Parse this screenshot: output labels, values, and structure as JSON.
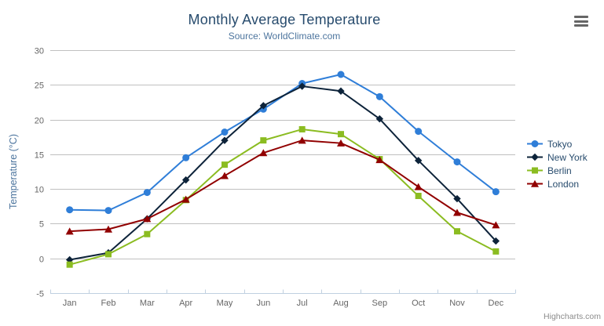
{
  "header": {
    "title": "Monthly Average Temperature",
    "subtitle": "Source: WorldClimate.com"
  },
  "export_menu": {
    "icon": "hamburger-menu-icon"
  },
  "credits": {
    "label": "Highcharts.com"
  },
  "colors": {
    "title": "#274b6d",
    "subtitle": "#4d759e",
    "axis_label": "#666666",
    "gridline": "#c0c0c0",
    "x_axis_line": "#c0d0e0",
    "legend_text": "#274b6d",
    "menu_icon": "#666666",
    "credit_text": "#8c8c8c"
  },
  "chart_data": {
    "type": "line",
    "title": "Monthly Average Temperature",
    "subtitle": "Source: WorldClimate.com",
    "xlabel": "",
    "ylabel": "Temperature (°C)",
    "categories": [
      "Jan",
      "Feb",
      "Mar",
      "Apr",
      "May",
      "Jun",
      "Jul",
      "Aug",
      "Sep",
      "Oct",
      "Nov",
      "Dec"
    ],
    "ylim": [
      -5,
      30
    ],
    "yticks": [
      -5,
      0,
      5,
      10,
      15,
      20,
      25,
      30
    ],
    "grid": true,
    "legend_position": "right",
    "series": [
      {
        "name": "Tokyo",
        "color": "#2f7ed8",
        "marker": "circle",
        "values": [
          7.0,
          6.9,
          9.5,
          14.5,
          18.2,
          21.5,
          25.2,
          26.5,
          23.3,
          18.3,
          13.9,
          9.6
        ]
      },
      {
        "name": "New York",
        "color": "#0d233a",
        "marker": "diamond",
        "values": [
          -0.2,
          0.8,
          5.7,
          11.3,
          17.0,
          22.0,
          24.8,
          24.1,
          20.1,
          14.1,
          8.6,
          2.5
        ]
      },
      {
        "name": "Berlin",
        "color": "#8bbc21",
        "marker": "square",
        "values": [
          -0.9,
          0.6,
          3.5,
          8.4,
          13.5,
          17.0,
          18.6,
          17.9,
          14.3,
          9.0,
          3.9,
          1.0
        ]
      },
      {
        "name": "London",
        "color": "#910000",
        "marker": "triangle",
        "values": [
          3.9,
          4.2,
          5.7,
          8.5,
          11.9,
          15.2,
          17.0,
          16.6,
          14.2,
          10.3,
          6.6,
          4.8
        ]
      }
    ]
  }
}
